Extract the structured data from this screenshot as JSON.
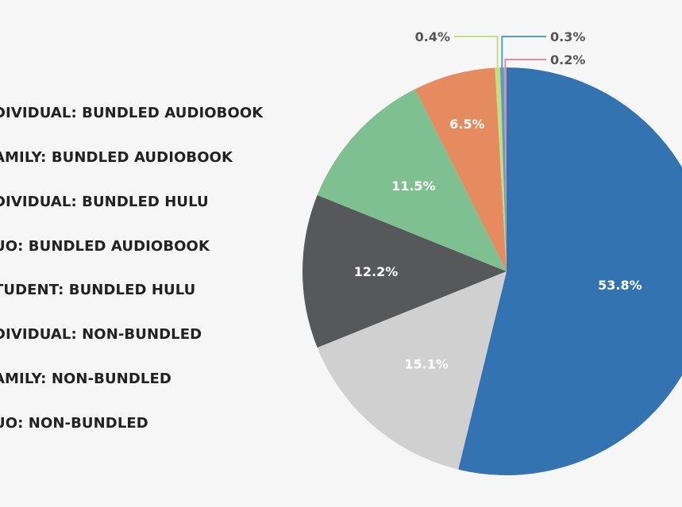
{
  "chart_data": {
    "type": "pie",
    "title": "",
    "legend_placement": "left",
    "categories": [
      "INDIVIDUAL: BUNDLED AUDIOBOOK",
      "FAMILY: BUNDLED AUDIOBOOK",
      "INDIVIDUAL: BUNDLED HULU",
      "DUO: BUNDLED AUDIOBOOK",
      "STUDENT: BUNDLED HULU",
      "INDIVIDUAL: NON-BUNDLED",
      "FAMILY: NON-BUNDLED",
      "DUO: NON-BUNDLED"
    ],
    "legend_text": [
      "DIVIDUAL: BUNDLED AUDIOBOOK",
      "AMILY: BUNDLED AUDIOBOOK",
      "DIVIDUAL: BUNDLED HULU",
      "UO: BUNDLED AUDIOBOOK",
      "TUDENT: BUNDLED HULU",
      "DIVIDUAL: NON-BUNDLED",
      "AMILY: NON-BUNDLED",
      "UO: NON-BUNDLED"
    ],
    "slices": [
      {
        "label": "53.8%",
        "value": 53.8,
        "color": "#3473b1"
      },
      {
        "label": "15.1%",
        "value": 15.1,
        "color": "#d0d0d0"
      },
      {
        "label": "12.2%",
        "value": 12.2,
        "color": "#56585a"
      },
      {
        "label": "11.5%",
        "value": 11.5,
        "color": "#7ec08f"
      },
      {
        "label": "6.5%",
        "value": 6.5,
        "color": "#e68b60"
      },
      {
        "label": "0.4%",
        "value": 0.4,
        "color": "#c9dd7b"
      },
      {
        "label": "0.3%",
        "value": 0.3,
        "color": "#49a4c8"
      },
      {
        "label": "0.2%",
        "value": 0.2,
        "color": "#e58aa6"
      }
    ]
  }
}
